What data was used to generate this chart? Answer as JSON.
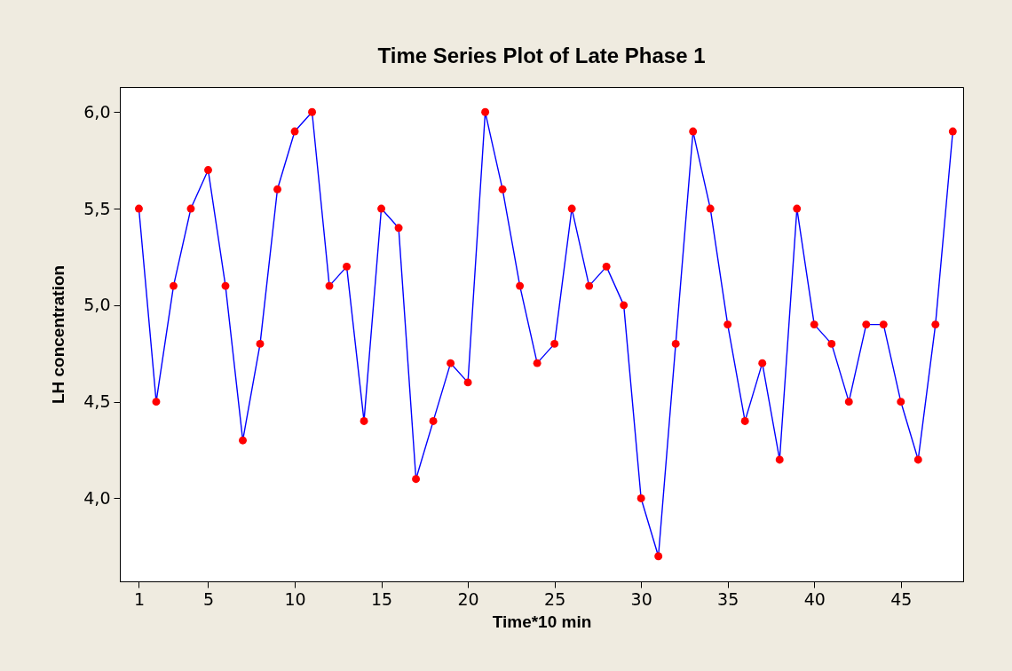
{
  "chart_data": {
    "type": "line",
    "title": "Time Series Plot of Late Phase 1",
    "xlabel": "Time*10 min",
    "ylabel": "LH concentration",
    "x": [
      1,
      2,
      3,
      4,
      5,
      6,
      7,
      8,
      9,
      10,
      11,
      12,
      13,
      14,
      15,
      16,
      17,
      18,
      19,
      20,
      21,
      22,
      23,
      24,
      25,
      26,
      27,
      28,
      29,
      30,
      31,
      32,
      33,
      34,
      35,
      36,
      37,
      38,
      39,
      40,
      41,
      42,
      43,
      44,
      45,
      46,
      47,
      48
    ],
    "series": [
      {
        "color": "#0000ff",
        "colors": [
          "#ff0000",
          "#ff0000",
          "#ff0000",
          "#ff0000",
          "#ff0000",
          "#ff0000",
          "#ff0000",
          "#ff0000",
          "#ff0000",
          "#ff0000",
          "#ff0000",
          "#ff0000",
          "#ff0000",
          "#ff0000",
          "#ff0000",
          "#ff0000",
          "#ff0000",
          "#ff0000",
          "#ff0000",
          "#ff0000",
          "#ff0000",
          "#ff0000",
          "#ff0000",
          "#ff0000",
          "#ff0000",
          "#ff0000",
          "#ff0000",
          "#ff0000",
          "#ff0000",
          "#ff0000",
          "#ff0000",
          "#ff0000",
          "#ff0000",
          "#ff0000",
          "#ff0000",
          "#ff0000",
          "#ff0000",
          "#ff0000",
          "#ff0000",
          "#ff0000",
          "#ff0000",
          "#ff0000",
          "#ff0000",
          "#ff0000",
          "#ff0000",
          "#ff0000",
          "#ff0000",
          "#ff0000"
        ],
        "values": [
          5.5,
          4.5,
          5.1,
          5.5,
          5.7,
          5.1,
          4.3,
          4.8,
          5.6,
          5.9,
          6.0,
          5.1,
          5.2,
          4.4,
          5.5,
          5.4,
          4.1,
          4.4,
          4.7,
          4.6,
          6.0,
          5.6,
          5.1,
          4.7,
          4.8,
          5.5,
          5.1,
          5.2,
          5.0,
          4.0,
          3.7,
          4.8,
          5.9,
          5.5,
          4.9,
          4.4,
          4.7,
          4.2,
          5.5,
          4.9,
          4.8,
          4.5,
          4.9,
          4.9,
          4.5,
          4.2,
          4.9,
          5.9
        ]
      }
    ],
    "xlim": [
      -0.1,
      48.6
    ],
    "xticks": [
      1,
      5,
      10,
      15,
      20,
      25,
      30,
      35,
      40,
      45
    ],
    "ylim": [
      3.57,
      6.13
    ],
    "yticks": [
      {
        "value": 4.0,
        "label": "4,0"
      },
      {
        "value": 4.5,
        "label": "4,5"
      },
      {
        "value": 5.0,
        "label": "5,0"
      },
      {
        "value": 5.5,
        "label": "5,5"
      },
      {
        "value": 6.0,
        "label": "6,0"
      }
    ],
    "marker": "circle",
    "line_style": "solid",
    "grid": false
  }
}
